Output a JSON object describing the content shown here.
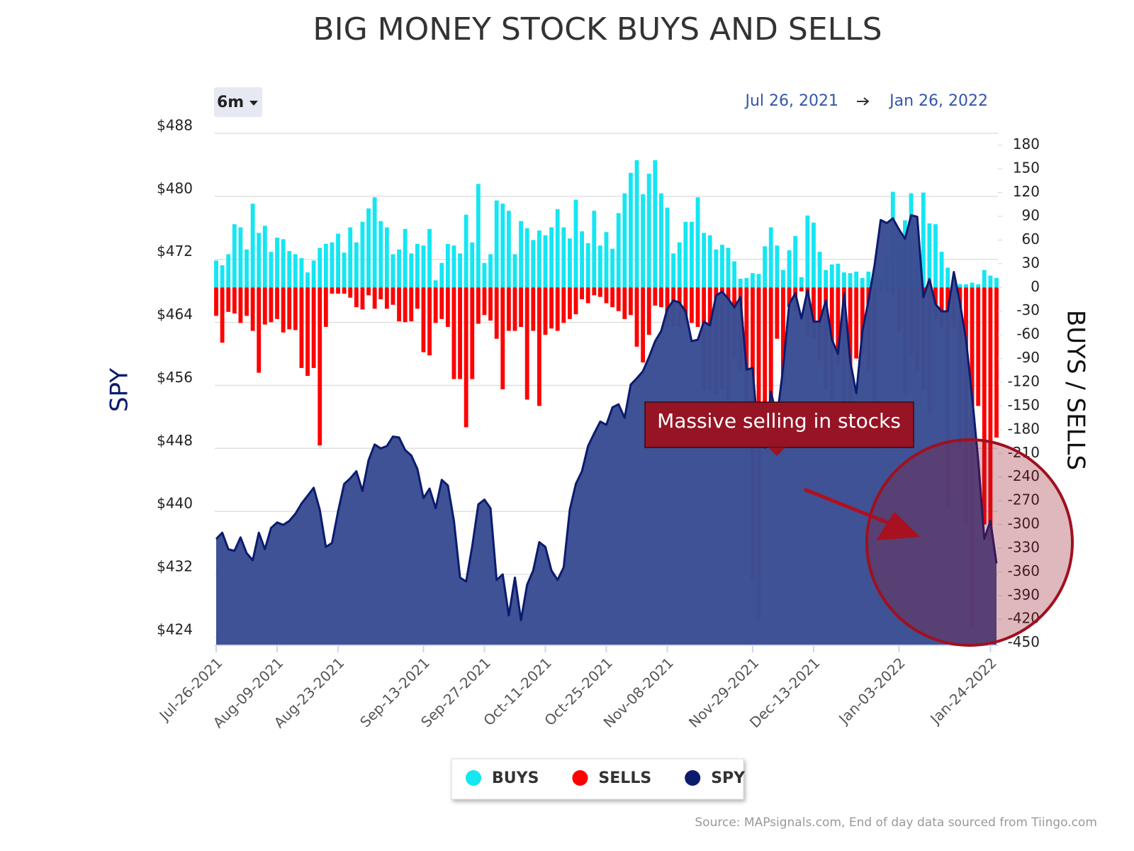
{
  "chart_data": {
    "type": "bar",
    "title": "BIG MONEY STOCK BUYS AND SELLS",
    "range_button": "6m",
    "date_range": {
      "start": "Jul 26, 2021",
      "end": "Jan 26, 2022"
    },
    "y_label": "SPY",
    "y2_label": "BUYS / SELLS",
    "source": "Source: MAPsignals.com, End of day data sourced from Tiingo.com",
    "annotations": [
      {
        "text": "Massive selling in stocks"
      }
    ],
    "categories": [
      "Jul-26-2021",
      null,
      null,
      null,
      null,
      null,
      null,
      null,
      null,
      null,
      "Aug-09-2021",
      null,
      null,
      null,
      null,
      null,
      null,
      null,
      null,
      null,
      "Aug-23-2021",
      null,
      null,
      null,
      null,
      null,
      null,
      null,
      null,
      null,
      null,
      null,
      null,
      null,
      "Sep-13-2021",
      null,
      null,
      null,
      null,
      null,
      null,
      null,
      null,
      null,
      "Sep-27-2021",
      null,
      null,
      null,
      null,
      null,
      null,
      null,
      null,
      null,
      "Oct-11-2021",
      null,
      null,
      null,
      null,
      null,
      null,
      null,
      null,
      null,
      "Oct-25-2021",
      null,
      null,
      null,
      null,
      null,
      null,
      null,
      null,
      null,
      "Nov-08-2021",
      null,
      null,
      null,
      null,
      null,
      null,
      null,
      null,
      null,
      null,
      null,
      null,
      null,
      "Nov-29-2021",
      null,
      null,
      null,
      null,
      null,
      null,
      null,
      null,
      null,
      "Dec-13-2021",
      null,
      null,
      null,
      null,
      null,
      null,
      null,
      null,
      null,
      null,
      null,
      null,
      null,
      "Jan-03-2022",
      null,
      null,
      null,
      null,
      null,
      null,
      null,
      null,
      null,
      null,
      null,
      null,
      null,
      null,
      "Jan-24-2022",
      null
    ],
    "series": [
      {
        "name": "BUYS",
        "type": "bar",
        "axis": "y2",
        "color": "#14e6f2",
        "values": [
          34,
          28,
          42,
          80,
          76,
          48,
          106,
          69,
          78,
          45,
          63,
          61,
          46,
          42,
          37,
          19,
          34,
          50,
          55,
          57,
          68,
          44,
          76,
          57,
          83,
          100,
          114,
          84,
          76,
          42,
          48,
          74,
          43,
          55,
          53,
          74,
          9,
          31,
          55,
          53,
          43,
          92,
          57,
          131,
          31,
          42,
          110,
          106,
          97,
          42,
          84,
          75,
          60,
          72,
          66,
          76,
          99,
          76,
          62,
          111,
          71,
          56,
          97,
          53,
          70,
          49,
          94,
          119,
          145,
          161,
          118,
          144,
          161,
          119,
          101,
          43,
          57,
          83,
          83,
          114,
          69,
          66,
          48,
          54,
          50,
          33,
          11,
          12,
          18,
          17,
          52,
          76,
          53,
          22,
          47,
          65,
          13,
          91,
          82,
          45,
          22,
          29,
          30,
          19,
          18,
          20,
          12,
          20,
          18,
          12,
          38,
          121,
          72,
          85,
          119,
          73,
          120,
          81,
          80,
          45,
          25,
          10,
          4,
          4,
          6,
          4,
          22,
          15,
          12
        ]
      },
      {
        "name": "SELLS",
        "type": "bar",
        "axis": "y2",
        "color": "#ff0000",
        "values": [
          -36,
          -70,
          -31,
          -33,
          -45,
          -36,
          -55,
          -108,
          -47,
          -44,
          -40,
          -57,
          -53,
          -54,
          -102,
          -112,
          -102,
          -200,
          -50,
          -8,
          -8,
          -8,
          -13,
          -25,
          -28,
          -10,
          -27,
          -15,
          -27,
          -22,
          -43,
          -44,
          -43,
          -27,
          -82,
          -86,
          -45,
          -40,
          -50,
          -116,
          -116,
          -177,
          -116,
          -46,
          -35,
          -42,
          -65,
          -129,
          -55,
          -55,
          -50,
          -142,
          -55,
          -150,
          -60,
          -52,
          -55,
          -45,
          -40,
          -34,
          -15,
          -20,
          -10,
          -12,
          -20,
          -25,
          -30,
          -40,
          -35,
          -75,
          -95,
          -60,
          -23,
          -25,
          -50,
          -50,
          -50,
          -48,
          -45,
          -50,
          -130,
          -130,
          -135,
          -130,
          -165,
          -90,
          -105,
          -180,
          -370,
          -420,
          -170,
          -145,
          -65,
          -125,
          -25,
          -30,
          -5,
          -62,
          -65,
          -92,
          -130,
          -185,
          -100,
          -165,
          -150,
          -90,
          -85,
          -105,
          -205,
          -5,
          -5,
          -10,
          -55,
          -135,
          -90,
          -105,
          -130,
          -160,
          -40,
          -50,
          -280,
          -50,
          -200,
          -300,
          -430,
          -150,
          -300,
          -320,
          -190
        ]
      },
      {
        "name": "SPY",
        "type": "area",
        "color": "#0d1b6e",
        "fill": "#3a4f93",
        "values": [
          436.5,
          437.3,
          435.2,
          435,
          436.7,
          434.7,
          433.8,
          437.3,
          435.2,
          437.9,
          438.6,
          438.3,
          438.8,
          439.7,
          441,
          442,
          443,
          440.2,
          435.5,
          436,
          440,
          443.5,
          444.2,
          445.1,
          442.6,
          446.5,
          448.5,
          448,
          448.3,
          449.5,
          449.4,
          447.8,
          447.1,
          445.4,
          441.7,
          442.9,
          440.4,
          444,
          443.3,
          438.8,
          431.6,
          431.1,
          435.6,
          440.9,
          441.5,
          440.4,
          431.3,
          432,
          426.8,
          431.6,
          426.2,
          430.7,
          432.5,
          436.1,
          435.5,
          432.5,
          431.3,
          432.9,
          440.2,
          443.5,
          445.1,
          448.3,
          449.9,
          451.4,
          451,
          453.2,
          453.6,
          451.9,
          456.1,
          456.9,
          457.8,
          459.6,
          461.6,
          462.9,
          465.7,
          466.8,
          466.5,
          465.4,
          461.6,
          461.8,
          464.1,
          463.6,
          467.4,
          467.9,
          467,
          465.9,
          467.2,
          458,
          458.2,
          448.7,
          448.1,
          455.2,
          451.9,
          458.2,
          466.3,
          467.7,
          464.5,
          468.1,
          464.1,
          464.1,
          466.8,
          461.8,
          460,
          467.7,
          459.1,
          455,
          462.9,
          466.8,
          471.3,
          477,
          476.6,
          477.2,
          475.8,
          474.6,
          477.6,
          477.4,
          467.2,
          469.5,
          466.3,
          465.4,
          465.4,
          470.4,
          466.5,
          461.8,
          454.6,
          446.5,
          436.5,
          438.8,
          433.4
        ]
      }
    ],
    "ylim": [
      423,
      488
    ],
    "yticks": [
      {
        "value": 424,
        "label": "$424"
      },
      {
        "value": 432,
        "label": "$432"
      },
      {
        "value": 440,
        "label": "$440"
      },
      {
        "value": 448,
        "label": "$448"
      },
      {
        "value": 456,
        "label": "$456"
      },
      {
        "value": 464,
        "label": "$464"
      },
      {
        "value": 472,
        "label": "$472"
      },
      {
        "value": 480,
        "label": "$480"
      },
      {
        "value": 488,
        "label": "$488"
      }
    ],
    "y2lim": [
      -453,
      195
    ],
    "y2ticks": [
      180,
      150,
      120,
      90,
      60,
      30,
      0,
      -30,
      -60,
      -90,
      -120,
      -150,
      -180,
      -210,
      -240,
      -270,
      -300,
      -330,
      -360,
      -390,
      -420,
      -450
    ],
    "grid": true,
    "legend": "bottom"
  }
}
